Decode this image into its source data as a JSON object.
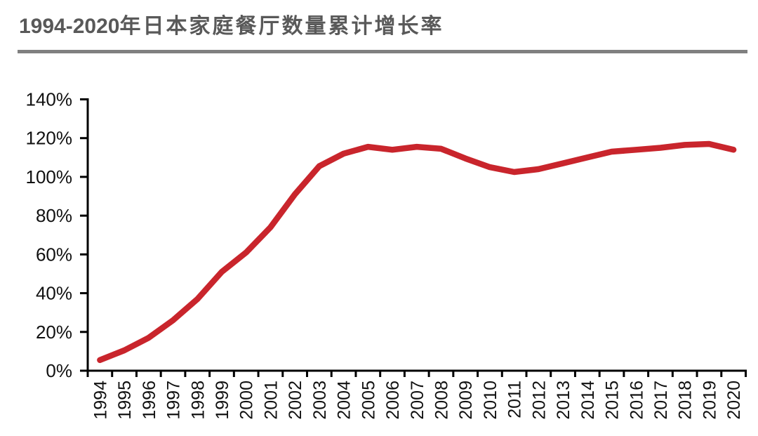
{
  "header": {
    "title_years": "1994-2020",
    "title_cn": "年日本家庭餐厅数量累计增长率",
    "title_full": "1994-2020年日本家庭餐厅数量累计增长率"
  },
  "colors": {
    "title": "#595959",
    "divider": "#808080",
    "line": "#c9252c",
    "axis": "#000000",
    "tick_label": "#111111"
  },
  "chart_data": {
    "type": "line",
    "title": "1994-2020年日本家庭餐厅数量累计增长率",
    "categories": [
      "1994",
      "1995",
      "1996",
      "1997",
      "1998",
      "1999",
      "2000",
      "2001",
      "2002",
      "2003",
      "2004",
      "2005",
      "2006",
      "2007",
      "2008",
      "2009",
      "2010",
      "2011",
      "2012",
      "2013",
      "2014",
      "2015",
      "2016",
      "2017",
      "2018",
      "2019",
      "2020"
    ],
    "series": [
      {
        "name": "日本家庭餐厅数量累计增长率",
        "values": [
          5.5,
          10.5,
          17,
          26,
          37,
          51,
          61,
          74,
          91,
          105.5,
          112,
          115.5,
          114,
          115.5,
          114.5,
          109.5,
          105,
          102.5,
          104,
          107,
          110,
          113,
          114,
          115,
          116.5,
          117,
          114
        ]
      }
    ],
    "value_unit": "%",
    "xlabel": "",
    "ylabel": "",
    "ylim": [
      0,
      140
    ],
    "y_tick_step": 20,
    "y_tick_labels": [
      "0%",
      "20%",
      "40%",
      "60%",
      "80%",
      "100%",
      "120%",
      "140%"
    ],
    "x_tick_labels_rotated": true,
    "grid": false,
    "legend_position": "none",
    "line_color": "#c9252c",
    "axis_color": "#000000"
  }
}
